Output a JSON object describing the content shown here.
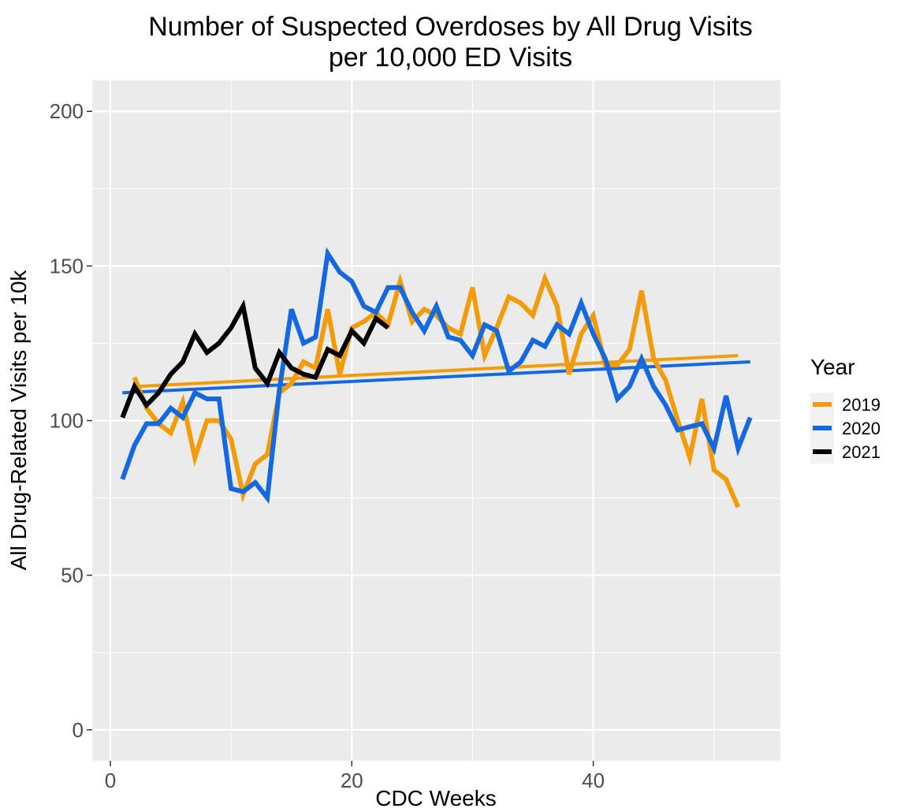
{
  "chart_data": {
    "type": "line",
    "title": "Number of Suspected Overdoses by All Drug Visits",
    "subtitle": "per 10,000 ED Visits",
    "xlabel": "CDC Weeks",
    "ylabel": "All Drug-Related Visits per 10k",
    "xlim": [
      -1.5,
      55.5
    ],
    "ylim": [
      -10,
      210
    ],
    "xticks": [
      0,
      20,
      40
    ],
    "yticks": [
      0,
      50,
      100,
      150,
      200
    ],
    "grid": true,
    "legend": {
      "title": "Year",
      "position": "right"
    },
    "series": [
      {
        "name": "2019",
        "color": "#F39C0B",
        "x": [
          2,
          3,
          4,
          5,
          6,
          7,
          8,
          9,
          10,
          11,
          12,
          13,
          14,
          15,
          16,
          17,
          18,
          19,
          20,
          21,
          22,
          23,
          24,
          25,
          26,
          27,
          28,
          29,
          30,
          31,
          32,
          33,
          34,
          35,
          36,
          37,
          38,
          39,
          40,
          41,
          42,
          43,
          44,
          45,
          46,
          47,
          48,
          49,
          50,
          51,
          52
        ],
        "values": [
          114,
          104,
          99,
          96,
          106,
          88,
          100,
          100,
          94,
          76,
          86,
          89,
          109,
          112,
          119,
          117,
          136,
          115,
          130,
          132,
          135,
          131,
          145,
          132,
          136,
          134,
          130,
          128,
          143,
          121,
          130,
          140,
          138,
          134,
          146,
          137,
          115,
          128,
          134,
          118,
          118,
          123,
          142,
          120,
          113,
          100,
          88,
          107,
          84,
          81,
          72
        ],
        "trend": [
          111,
          121
        ]
      },
      {
        "name": "2020",
        "color": "#1569E0",
        "x": [
          1,
          2,
          3,
          4,
          5,
          6,
          7,
          8,
          9,
          10,
          11,
          12,
          13,
          14,
          15,
          16,
          17,
          18,
          19,
          20,
          21,
          22,
          23,
          24,
          25,
          26,
          27,
          28,
          29,
          30,
          31,
          32,
          33,
          34,
          35,
          36,
          37,
          38,
          39,
          40,
          41,
          42,
          43,
          44,
          45,
          46,
          47,
          48,
          49,
          50,
          51,
          52,
          53
        ],
        "values": [
          81,
          92,
          99,
          99,
          104,
          101,
          109,
          107,
          107,
          78,
          77,
          80,
          75,
          110,
          136,
          125,
          127,
          154,
          148,
          145,
          137,
          135,
          143,
          143,
          135,
          129,
          137,
          127,
          126,
          121,
          131,
          129,
          116,
          119,
          126,
          124,
          131,
          128,
          138,
          128,
          120,
          107,
          111,
          120,
          111,
          105,
          97,
          98,
          99,
          91,
          108,
          91,
          101
        ],
        "trend": [
          109,
          119
        ]
      },
      {
        "name": "2021",
        "color": "#000000",
        "x": [
          1,
          2,
          3,
          4,
          5,
          6,
          7,
          8,
          9,
          10,
          11,
          12,
          13,
          14,
          15,
          16,
          17,
          18,
          19,
          20,
          21,
          22,
          23
        ],
        "values": [
          101,
          111,
          105,
          109,
          115,
          119,
          128,
          122,
          125,
          130,
          137,
          117,
          112,
          122,
          117,
          115,
          114,
          123,
          121,
          129,
          125,
          133,
          130
        ]
      }
    ]
  }
}
